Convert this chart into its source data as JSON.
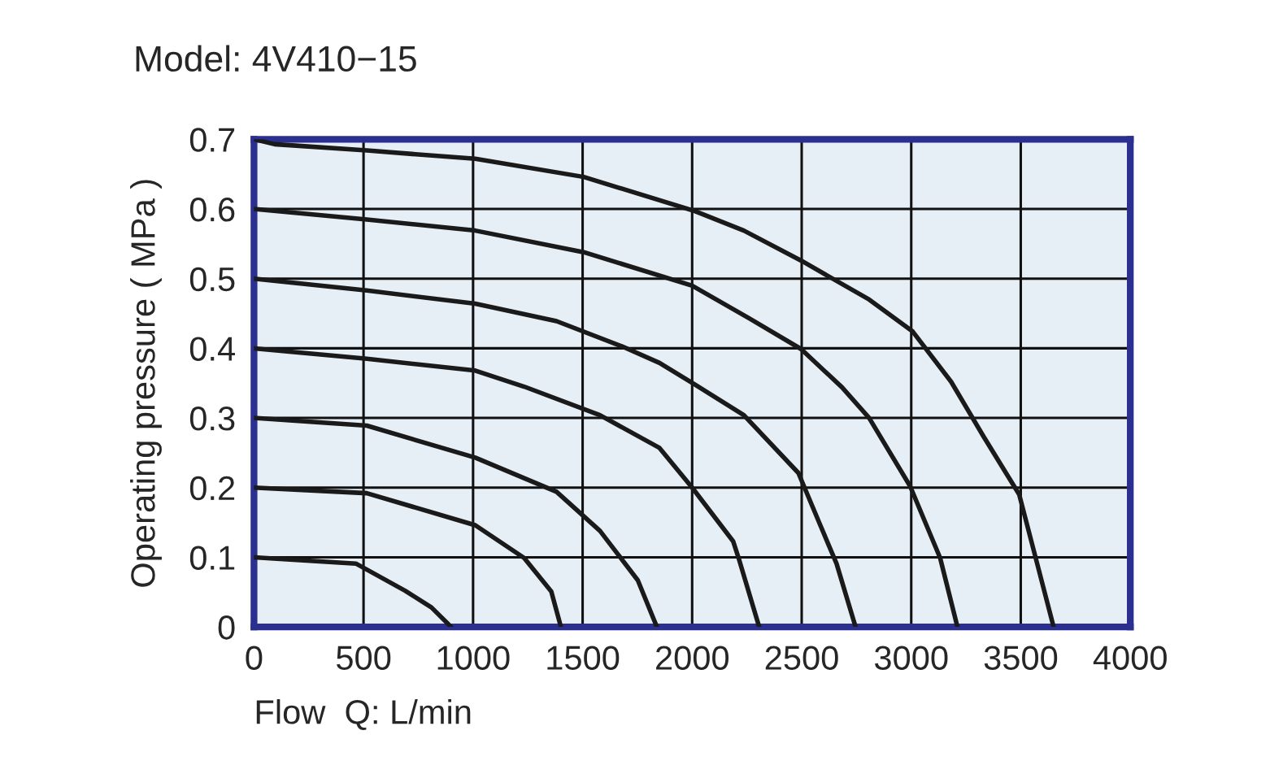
{
  "chart_data": {
    "type": "line",
    "title": "Model: 4V410−15",
    "xlabel": "Flow  Q: L/min",
    "ylabel": "Operating pressure ( MPa )",
    "xlim": [
      0,
      4000
    ],
    "ylim": [
      0,
      0.7
    ],
    "xticks": [
      0,
      500,
      1000,
      1500,
      2000,
      2500,
      3000,
      3500,
      4000
    ],
    "yticks": [
      0,
      0.1,
      0.2,
      0.3,
      0.4,
      0.5,
      0.6,
      0.7
    ],
    "grid": true,
    "legend": false,
    "marker": "none",
    "line_style": "solid",
    "series": [
      {
        "color": "#1a1a1a",
        "x": [
          0,
          465,
          690,
          810,
          900
        ],
        "values": [
          0.1,
          0.091,
          0.052,
          0.028,
          0
        ]
      },
      {
        "color": "#1a1a1a",
        "x": [
          0,
          515,
          1010,
          1233,
          1357,
          1401
        ],
        "values": [
          0.2,
          0.192,
          0.146,
          0.099,
          0.051,
          0
        ]
      },
      {
        "color": "#1a1a1a",
        "x": [
          0,
          515,
          1010,
          1381,
          1579,
          1752,
          1839
        ],
        "values": [
          0.3,
          0.289,
          0.243,
          0.194,
          0.138,
          0.067,
          0
        ]
      },
      {
        "color": "#1a1a1a",
        "x": [
          0,
          515,
          1010,
          1233,
          1579,
          1851,
          2000,
          2187,
          2212,
          2306
        ],
        "values": [
          0.4,
          0.385,
          0.368,
          0.345,
          0.304,
          0.257,
          0.2,
          0.123,
          0.099,
          0
        ]
      },
      {
        "color": "#1a1a1a",
        "x": [
          0,
          515,
          1010,
          1381,
          1678,
          1851,
          2012,
          2236,
          2485,
          2585,
          2659,
          2746
        ],
        "values": [
          0.5,
          0.483,
          0.464,
          0.439,
          0.403,
          0.379,
          0.348,
          0.304,
          0.221,
          0.146,
          0.091,
          0
        ]
      },
      {
        "color": "#1a1a1a",
        "x": [
          0,
          515,
          1010,
          1505,
          2000,
          2261,
          2497,
          2684,
          2808,
          2995,
          3132,
          3211
        ],
        "values": [
          0.6,
          0.585,
          0.569,
          0.538,
          0.49,
          0.443,
          0.399,
          0.344,
          0.3,
          0.202,
          0.099,
          0
        ]
      },
      {
        "color": "#1a1a1a",
        "x": [
          0,
          94,
          515,
          1010,
          1505,
          2012,
          2236,
          2497,
          2808,
          3007,
          3182,
          3331,
          3493,
          3555,
          3650
        ],
        "values": [
          0.7,
          0.693,
          0.684,
          0.672,
          0.646,
          0.597,
          0.569,
          0.526,
          0.47,
          0.424,
          0.352,
          0.273,
          0.19,
          0.115,
          0
        ]
      }
    ]
  }
}
